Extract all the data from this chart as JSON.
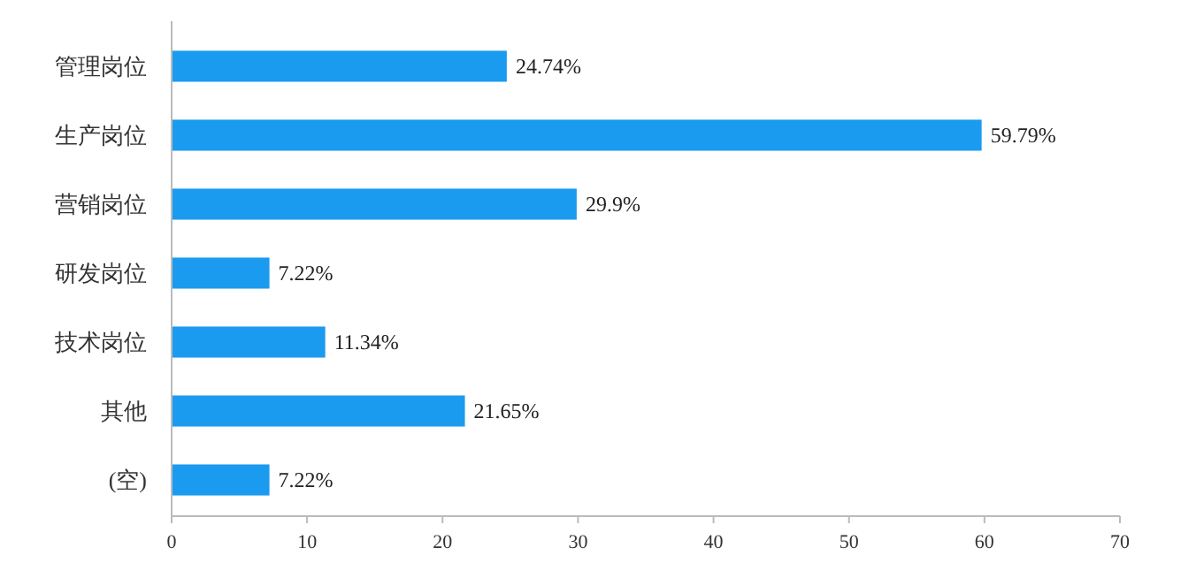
{
  "chart_data": {
    "type": "bar",
    "orientation": "horizontal",
    "categories": [
      "管理岗位",
      "生产岗位",
      "营销岗位",
      "研发岗位",
      "技术岗位",
      "其他",
      "(空)"
    ],
    "values": [
      24.74,
      59.79,
      29.9,
      7.22,
      11.34,
      21.65,
      7.22
    ],
    "value_labels": [
      "24.74%",
      "59.79%",
      "29.9%",
      "7.22%",
      "11.34%",
      "21.65%",
      "7.22%"
    ],
    "color": "#1a9bef",
    "xlim": [
      0,
      70
    ],
    "xticks": [
      0,
      10,
      20,
      30,
      40,
      50,
      60,
      70
    ]
  }
}
